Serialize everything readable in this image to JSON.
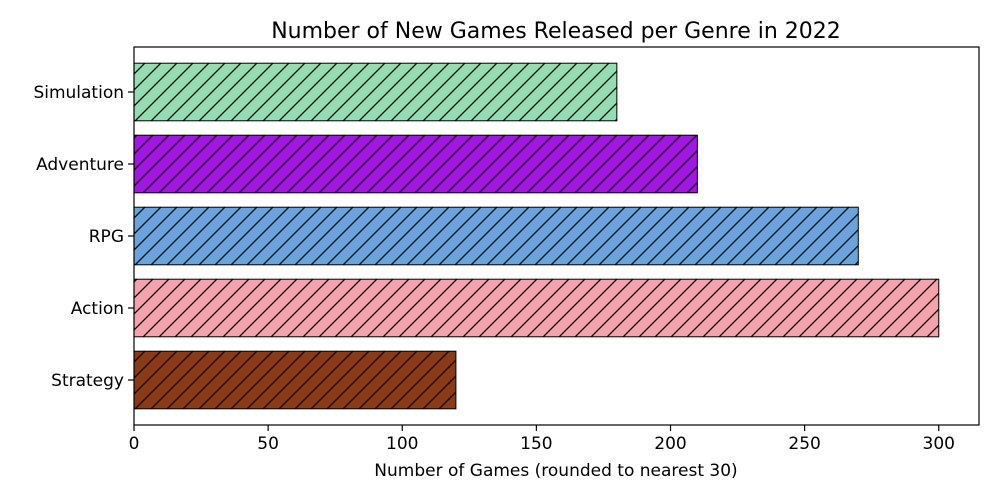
{
  "chart_data": {
    "type": "bar",
    "orientation": "horizontal",
    "title": "Number of New Games Released per Genre in 2022",
    "xlabel": "Number of Games (rounded to nearest 30)",
    "ylabel": "",
    "xlim": [
      0,
      315
    ],
    "x_ticks": [
      "0",
      "50",
      "100",
      "150",
      "200",
      "250",
      "300"
    ],
    "grid": false,
    "hatch": "diagonal",
    "categories": [
      "Strategy",
      "Action",
      "RPG",
      "Adventure",
      "Simulation"
    ],
    "values": [
      120,
      300,
      270,
      210,
      180
    ],
    "colors": [
      "#8b3a17",
      "#f4a3ad",
      "#6aa4dd",
      "#a116e0",
      "#93ddb1"
    ]
  }
}
